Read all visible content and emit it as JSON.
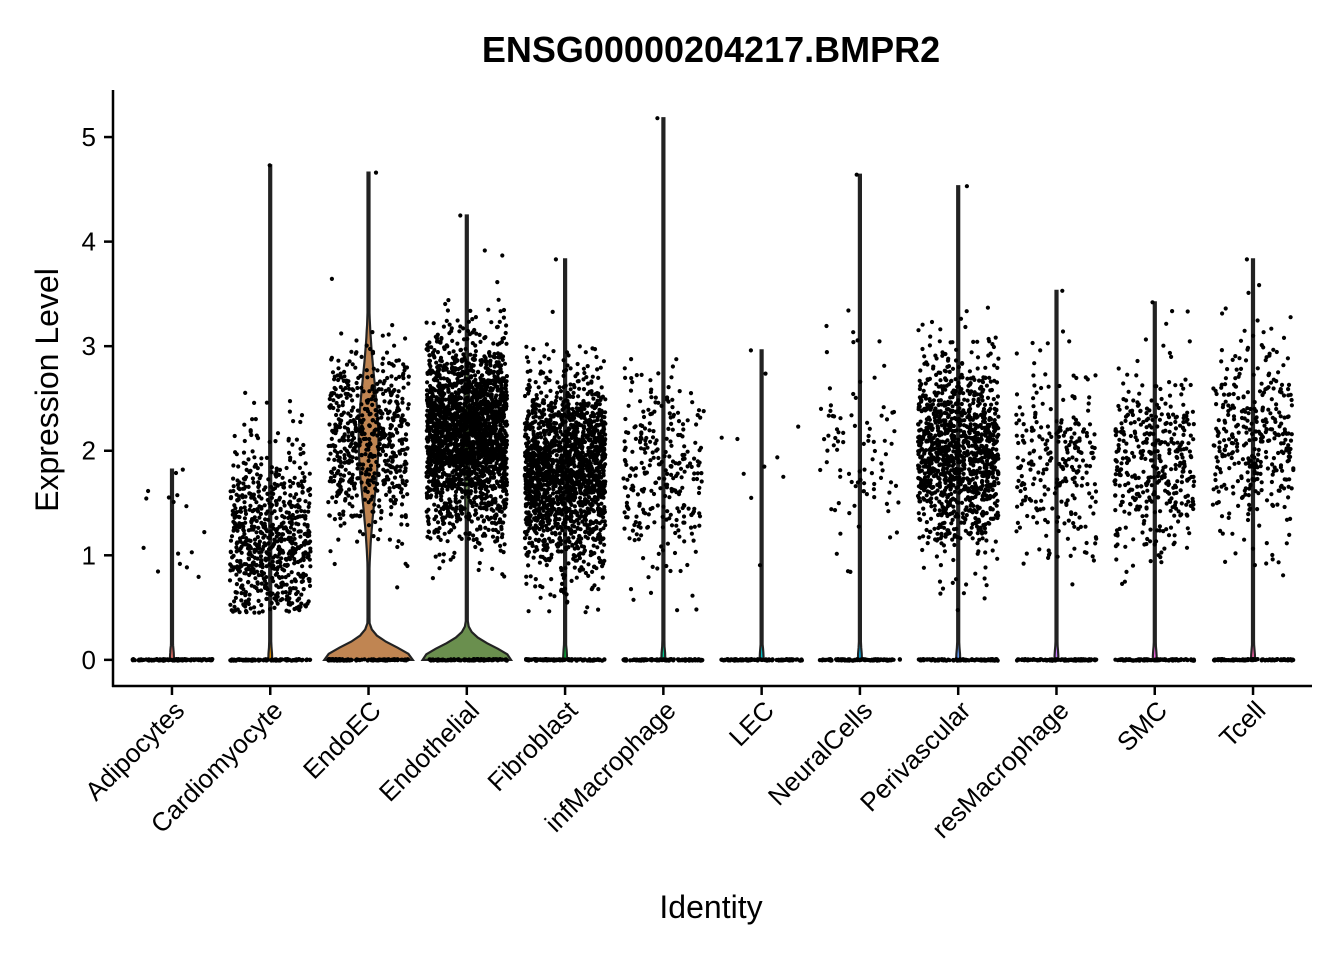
{
  "chart_data": {
    "type": "violin",
    "title": "ENSG00000204217.BMPR2",
    "xlabel": "Identity",
    "ylabel": "Expression Level",
    "ylim": [
      -0.25,
      5.45
    ],
    "yticks": [
      0,
      1,
      2,
      3,
      4,
      5
    ],
    "grid": false,
    "legend": "none",
    "categories": [
      "Adipocytes",
      "Cardiomyocyte",
      "EndoEC",
      "Endothelial",
      "Fibroblast",
      "infMacrophage",
      "LEC",
      "NeuralCells",
      "Perivascular",
      "resMacrophage",
      "SMC",
      "Tcell"
    ],
    "colors": [
      "#F8766D",
      "#DE8C00",
      "#C08552",
      "#6A8F4E",
      "#00BA38",
      "#00C08B",
      "#00BFC4",
      "#00B4F0",
      "#619CFF",
      "#C77CFF",
      "#F564E3",
      "#FF64B0"
    ],
    "max_values": [
      1.82,
      4.73,
      4.66,
      4.25,
      3.83,
      5.18,
      2.96,
      4.64,
      4.53,
      3.53,
      3.42,
      3.83
    ],
    "nonzero_center": [
      1.2,
      1.2,
      2.1,
      2.15,
      1.8,
      1.8,
      1.8,
      2.1,
      2.0,
      1.9,
      1.9,
      2.1
    ],
    "nonzero_counts": [
      15,
      700,
      600,
      2200,
      1800,
      280,
      10,
      90,
      1200,
      260,
      400,
      360
    ],
    "violin_zero_width": [
      0.02,
      0.02,
      0.45,
      0.45,
      0.02,
      0.02,
      0.02,
      0.02,
      0.02,
      0.02,
      0.02,
      0.02
    ],
    "violin_upper_width": [
      0.0,
      0.0,
      0.1,
      0.03,
      0.0,
      0.0,
      0.0,
      0.0,
      0.0,
      0.0,
      0.0,
      0.0
    ]
  }
}
